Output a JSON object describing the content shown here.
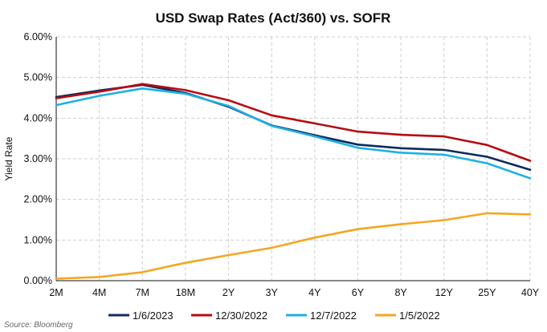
{
  "chart_data": {
    "type": "line",
    "title": "USD Swap Rates (Act/360) vs. SOFR",
    "ylabel": "Yield Rate",
    "xlabel": "",
    "categories": [
      "2M",
      "4M",
      "7M",
      "18M",
      "2Y",
      "3Y",
      "4Y",
      "6Y",
      "8Y",
      "12Y",
      "25Y",
      "40Y"
    ],
    "ylim": [
      0,
      6
    ],
    "yticks": [
      0,
      1,
      2,
      3,
      4,
      5,
      6
    ],
    "ytick_labels": [
      "0.00%",
      "1.00%",
      "2.00%",
      "3.00%",
      "4.00%",
      "5.00%",
      "6.00%"
    ],
    "grid": true,
    "legend_position": "bottom",
    "series": [
      {
        "name": "1/6/2023",
        "color": "#0d2a5c",
        "values": [
          4.52,
          4.68,
          4.82,
          4.62,
          4.28,
          3.82,
          3.58,
          3.35,
          3.26,
          3.22,
          3.05,
          2.73
        ]
      },
      {
        "name": "12/30/2022",
        "color": "#b50d12",
        "values": [
          4.49,
          4.65,
          4.84,
          4.69,
          4.44,
          4.07,
          3.87,
          3.67,
          3.59,
          3.55,
          3.34,
          2.95
        ]
      },
      {
        "name": "12/7/2022",
        "color": "#1fb0e6",
        "values": [
          4.32,
          4.55,
          4.73,
          4.6,
          4.3,
          3.81,
          3.55,
          3.27,
          3.15,
          3.1,
          2.89,
          2.52
        ]
      },
      {
        "name": "1/5/2022",
        "color": "#f5a623",
        "values": [
          0.05,
          0.09,
          0.21,
          0.44,
          0.63,
          0.81,
          1.06,
          1.27,
          1.39,
          1.49,
          1.66,
          1.63
        ]
      }
    ],
    "source": "Source: Bloomberg"
  }
}
